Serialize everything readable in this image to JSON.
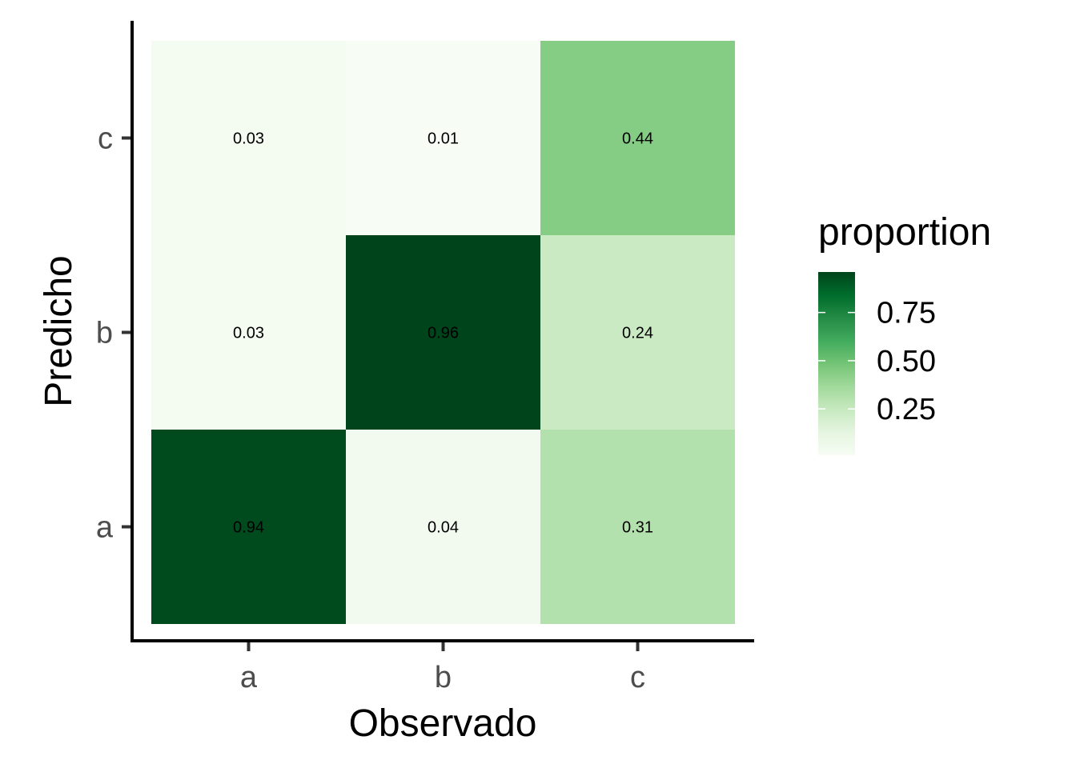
{
  "chart_data": {
    "type": "heatmap",
    "x_categories": [
      "a",
      "b",
      "c"
    ],
    "y_categories": [
      "a",
      "b",
      "c"
    ],
    "xlabel": "Observado",
    "ylabel": "Predicho",
    "cells": [
      {
        "x": "a",
        "y": "a",
        "value": 0.94,
        "label": "0.94"
      },
      {
        "x": "b",
        "y": "a",
        "value": 0.04,
        "label": "0.04"
      },
      {
        "x": "c",
        "y": "a",
        "value": 0.31,
        "label": "0.31"
      },
      {
        "x": "a",
        "y": "b",
        "value": 0.03,
        "label": "0.03"
      },
      {
        "x": "b",
        "y": "b",
        "value": 0.96,
        "label": "0.96"
      },
      {
        "x": "c",
        "y": "b",
        "value": 0.24,
        "label": "0.24"
      },
      {
        "x": "a",
        "y": "c",
        "value": 0.03,
        "label": "0.03"
      },
      {
        "x": "b",
        "y": "c",
        "value": 0.01,
        "label": "0.01"
      },
      {
        "x": "c",
        "y": "c",
        "value": 0.44,
        "label": "0.44"
      }
    ],
    "legend": {
      "title": "proportion",
      "position": "right",
      "breaks": [
        0.25,
        0.5,
        0.75
      ],
      "break_labels": [
        "0.25",
        "0.50",
        "0.75"
      ],
      "range": [
        0.01,
        0.96
      ],
      "color_low": "#f7fcf5",
      "color_high": "#00441b"
    },
    "grid": false,
    "colors": {
      "palette": [
        "#f7fcf5",
        "#e5f5e0",
        "#c7e9c0",
        "#a1d99b",
        "#74c476",
        "#41ab5d",
        "#238b45",
        "#006d2c",
        "#00441b"
      ]
    }
  }
}
